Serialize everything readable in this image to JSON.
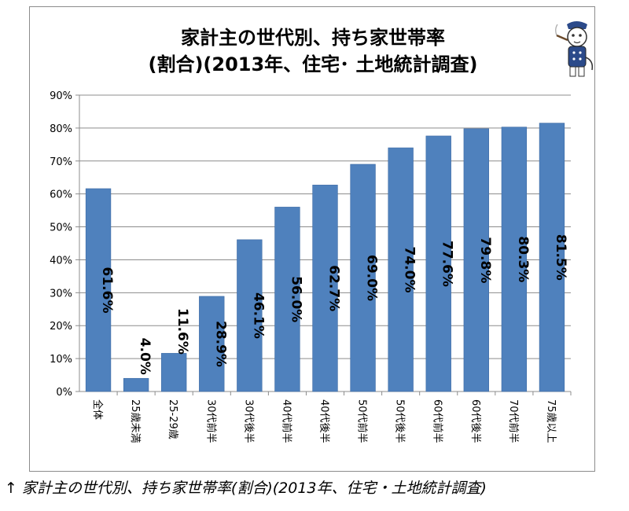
{
  "chart_data": {
    "type": "bar",
    "title": "家計主の世代別、持ち家世帯率",
    "subtitle": "(割合)(2013年、住宅･ 土地統計調査)",
    "categories": [
      "全体",
      "25歳未満",
      "25-29歳",
      "30代前半",
      "30代後半",
      "40代前半",
      "40代後半",
      "50代前半",
      "50代後半",
      "60代前半",
      "60代後半",
      "70代前半",
      "75歳以上"
    ],
    "values": [
      61.6,
      4.0,
      11.6,
      28.9,
      46.1,
      56.0,
      62.7,
      69.0,
      74.0,
      77.6,
      79.8,
      80.3,
      81.5
    ],
    "data_labels": [
      "61.6%",
      "4.0%",
      "11.6%",
      "28.9%",
      "46.1%",
      "56.0%",
      "62.7%",
      "69.0%",
      "74.0%",
      "77.6%",
      "79.8%",
      "80.3%",
      "81.5%"
    ],
    "y_ticks": [
      "0%",
      "10%",
      "20%",
      "30%",
      "40%",
      "50%",
      "60%",
      "70%",
      "80%",
      "90%"
    ],
    "ylim": [
      0,
      90
    ],
    "grid": true,
    "bar_color": "#4f81bd",
    "legend": "none"
  },
  "caption": {
    "arrow": "↑",
    "text": "家計主の世代別、持ち家世帯率(割合)(2013年、住宅・土地統計調査)"
  },
  "mascot_icon": "smoking-cat-mascot-icon"
}
